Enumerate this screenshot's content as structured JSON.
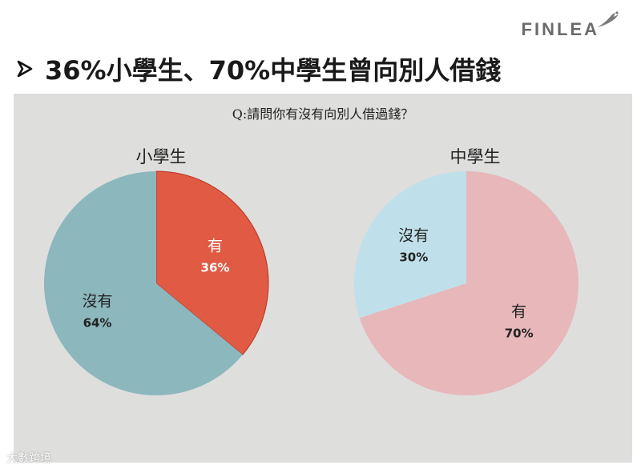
{
  "logo": {
    "text": "FINLEA"
  },
  "headline": {
    "title": "36%小學生、70%中學生曾向別人借錢"
  },
  "survey": {
    "question": "Q:請問你有沒有向別人借過錢？"
  },
  "watermark": {
    "text": "大數跨境"
  },
  "colors": {
    "primary_yes": "#e05a44",
    "primary_no": "#8bb7bd",
    "secondary_yes": "#e8b7ba",
    "secondary_no": "#bfe0ea",
    "panel_bg": "#dededd"
  },
  "chart_data": [
    {
      "type": "pie",
      "title": "小學生",
      "categories": [
        "有",
        "沒有"
      ],
      "values": [
        36,
        64
      ],
      "labels": [
        "36%",
        "64%"
      ],
      "colors": [
        "#e05a44",
        "#8bb7bd"
      ]
    },
    {
      "type": "pie",
      "title": "中學生",
      "categories": [
        "有",
        "沒有"
      ],
      "values": [
        70,
        30
      ],
      "labels": [
        "70%",
        "30%"
      ],
      "colors": [
        "#e8b7ba",
        "#bfe0ea"
      ]
    }
  ]
}
